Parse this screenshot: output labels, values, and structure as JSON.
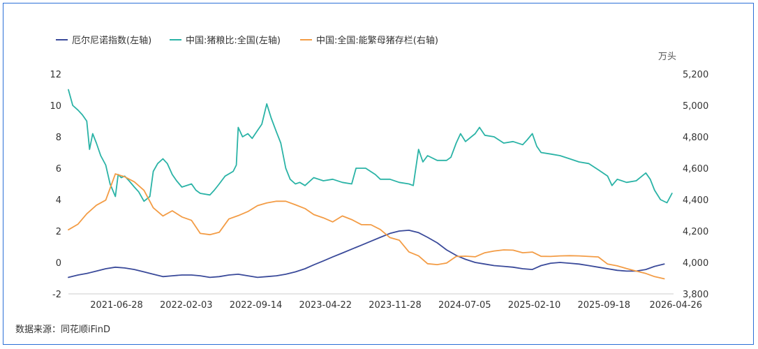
{
  "chart_data": {
    "type": "line",
    "right_axis_unit": "万头",
    "source": "数据来源：同花顺iFinD",
    "x_ticks": [
      "2021-06-28",
      "2022-02-03",
      "2022-09-14",
      "2023-04-22",
      "2023-11-28",
      "2024-07-05",
      "2025-02-10",
      "2025-09-18",
      "2026-04-26"
    ],
    "left_axis": {
      "ticks": [
        "12",
        "10",
        "8",
        "6",
        "4",
        "2",
        "0",
        "-2"
      ],
      "range": [
        -2,
        12
      ],
      "side": "left"
    },
    "right_axis": {
      "ticks": [
        "5,200",
        "5,000",
        "4,800",
        "4,600",
        "4,400",
        "4,200",
        "4,000",
        "3,800"
      ],
      "range": [
        3800,
        5200
      ],
      "side": "right"
    },
    "grid": false,
    "legend_position": "top-left",
    "series": [
      {
        "name": "厄尔尼诺指数(左轴)",
        "axis": "left",
        "color": "#3a4a9a",
        "points": [
          [
            "2021-01-01",
            -0.95
          ],
          [
            "2021-02-01",
            -0.8
          ],
          [
            "2021-03-01",
            -0.7
          ],
          [
            "2021-04-01",
            -0.55
          ],
          [
            "2021-05-01",
            -0.4
          ],
          [
            "2021-06-01",
            -0.3
          ],
          [
            "2021-07-01",
            -0.35
          ],
          [
            "2021-08-01",
            -0.45
          ],
          [
            "2021-09-01",
            -0.6
          ],
          [
            "2021-10-01",
            -0.75
          ],
          [
            "2021-11-01",
            -0.9
          ],
          [
            "2021-12-01",
            -0.85
          ],
          [
            "2022-01-01",
            -0.8
          ],
          [
            "2022-02-01",
            -0.8
          ],
          [
            "2022-03-01",
            -0.85
          ],
          [
            "2022-04-01",
            -0.95
          ],
          [
            "2022-05-01",
            -0.9
          ],
          [
            "2022-06-01",
            -0.8
          ],
          [
            "2022-07-01",
            -0.75
          ],
          [
            "2022-08-01",
            -0.85
          ],
          [
            "2022-09-01",
            -0.95
          ],
          [
            "2022-10-01",
            -0.9
          ],
          [
            "2022-11-01",
            -0.85
          ],
          [
            "2022-12-01",
            -0.75
          ],
          [
            "2023-01-01",
            -0.6
          ],
          [
            "2023-02-01",
            -0.4
          ],
          [
            "2023-03-01",
            -0.15
          ],
          [
            "2023-04-01",
            0.1
          ],
          [
            "2023-05-01",
            0.35
          ],
          [
            "2023-06-01",
            0.6
          ],
          [
            "2023-07-01",
            0.85
          ],
          [
            "2023-08-01",
            1.1
          ],
          [
            "2023-09-01",
            1.35
          ],
          [
            "2023-10-01",
            1.6
          ],
          [
            "2023-11-01",
            1.85
          ],
          [
            "2023-12-01",
            2.0
          ],
          [
            "2024-01-01",
            2.05
          ],
          [
            "2024-02-01",
            1.9
          ],
          [
            "2024-03-01",
            1.6
          ],
          [
            "2024-04-01",
            1.25
          ],
          [
            "2024-05-01",
            0.8
          ],
          [
            "2024-06-01",
            0.45
          ],
          [
            "2024-07-01",
            0.2
          ],
          [
            "2024-08-01",
            0.0
          ],
          [
            "2024-09-01",
            -0.1
          ],
          [
            "2024-10-01",
            -0.2
          ],
          [
            "2024-11-01",
            -0.25
          ],
          [
            "2024-12-01",
            -0.3
          ],
          [
            "2025-01-01",
            -0.4
          ],
          [
            "2025-02-01",
            -0.45
          ],
          [
            "2025-03-01",
            -0.2
          ],
          [
            "2025-04-01",
            -0.05
          ],
          [
            "2025-05-01",
            0.0
          ],
          [
            "2025-06-01",
            -0.05
          ],
          [
            "2025-07-01",
            -0.1
          ],
          [
            "2025-08-01",
            -0.2
          ],
          [
            "2025-09-01",
            -0.3
          ],
          [
            "2025-10-01",
            -0.4
          ],
          [
            "2025-11-01",
            -0.5
          ],
          [
            "2025-12-01",
            -0.55
          ],
          [
            "2026-01-01",
            -0.55
          ],
          [
            "2026-02-01",
            -0.45
          ],
          [
            "2026-03-01",
            -0.25
          ],
          [
            "2026-04-01",
            -0.1
          ]
        ]
      },
      {
        "name": "中国:猪粮比:全国(左轴)",
        "axis": "left",
        "color": "#2ab3a6",
        "points": [
          [
            "2021-01-01",
            11.0
          ],
          [
            "2021-01-15",
            10.0
          ],
          [
            "2021-02-01",
            9.7
          ],
          [
            "2021-02-15",
            9.4
          ],
          [
            "2021-03-01",
            9.0
          ],
          [
            "2021-03-10",
            7.2
          ],
          [
            "2021-03-20",
            8.2
          ],
          [
            "2021-04-01",
            7.6
          ],
          [
            "2021-04-15",
            6.8
          ],
          [
            "2021-05-01",
            6.2
          ],
          [
            "2021-05-15",
            5.0
          ],
          [
            "2021-06-01",
            4.2
          ],
          [
            "2021-06-10",
            5.6
          ],
          [
            "2021-06-20",
            5.4
          ],
          [
            "2021-07-01",
            5.5
          ],
          [
            "2021-07-15",
            5.2
          ],
          [
            "2021-08-01",
            4.8
          ],
          [
            "2021-08-15",
            4.5
          ],
          [
            "2021-09-01",
            3.9
          ],
          [
            "2021-09-20",
            4.2
          ],
          [
            "2021-10-01",
            5.8
          ],
          [
            "2021-10-15",
            6.3
          ],
          [
            "2021-11-01",
            6.6
          ],
          [
            "2021-11-15",
            6.3
          ],
          [
            "2021-12-01",
            5.6
          ],
          [
            "2021-12-15",
            5.2
          ],
          [
            "2022-01-01",
            4.8
          ],
          [
            "2022-02-01",
            5.0
          ],
          [
            "2022-02-15",
            4.6
          ],
          [
            "2022-03-01",
            4.4
          ],
          [
            "2022-04-01",
            4.3
          ],
          [
            "2022-04-15",
            4.6
          ],
          [
            "2022-05-01",
            5.0
          ],
          [
            "2022-05-20",
            5.5
          ],
          [
            "2022-06-15",
            5.8
          ],
          [
            "2022-06-25",
            6.2
          ],
          [
            "2022-07-01",
            8.6
          ],
          [
            "2022-07-15",
            8.0
          ],
          [
            "2022-08-01",
            8.2
          ],
          [
            "2022-08-15",
            7.9
          ],
          [
            "2022-09-01",
            8.4
          ],
          [
            "2022-09-15",
            8.8
          ],
          [
            "2022-10-01",
            10.1
          ],
          [
            "2022-10-15",
            9.2
          ],
          [
            "2022-11-01",
            8.3
          ],
          [
            "2022-11-15",
            7.6
          ],
          [
            "2022-12-01",
            6.0
          ],
          [
            "2022-12-15",
            5.3
          ],
          [
            "2023-01-01",
            5.0
          ],
          [
            "2023-01-15",
            5.1
          ],
          [
            "2023-02-01",
            4.9
          ],
          [
            "2023-03-01",
            5.4
          ],
          [
            "2023-04-01",
            5.2
          ],
          [
            "2023-05-01",
            5.3
          ],
          [
            "2023-06-01",
            5.1
          ],
          [
            "2023-07-01",
            5.0
          ],
          [
            "2023-07-15",
            6.0
          ],
          [
            "2023-08-15",
            6.0
          ],
          [
            "2023-09-15",
            5.6
          ],
          [
            "2023-10-01",
            5.3
          ],
          [
            "2023-11-01",
            5.3
          ],
          [
            "2023-12-01",
            5.1
          ],
          [
            "2024-01-01",
            5.0
          ],
          [
            "2024-01-15",
            4.9
          ],
          [
            "2024-02-01",
            7.2
          ],
          [
            "2024-02-15",
            6.4
          ],
          [
            "2024-03-01",
            6.8
          ],
          [
            "2024-04-01",
            6.5
          ],
          [
            "2024-05-01",
            6.5
          ],
          [
            "2024-05-15",
            6.7
          ],
          [
            "2024-06-01",
            7.6
          ],
          [
            "2024-06-15",
            8.2
          ],
          [
            "2024-07-01",
            7.7
          ],
          [
            "2024-08-01",
            8.2
          ],
          [
            "2024-08-15",
            8.6
          ],
          [
            "2024-09-01",
            8.1
          ],
          [
            "2024-10-01",
            8.0
          ],
          [
            "2024-11-01",
            7.6
          ],
          [
            "2024-12-01",
            7.7
          ],
          [
            "2025-01-01",
            7.5
          ],
          [
            "2025-01-15",
            7.8
          ],
          [
            "2025-02-01",
            8.2
          ],
          [
            "2025-02-15",
            7.4
          ],
          [
            "2025-03-01",
            7.0
          ],
          [
            "2025-04-01",
            6.9
          ],
          [
            "2025-05-01",
            6.8
          ],
          [
            "2025-06-01",
            6.6
          ],
          [
            "2025-07-01",
            6.4
          ],
          [
            "2025-08-01",
            6.3
          ],
          [
            "2025-09-01",
            5.9
          ],
          [
            "2025-10-01",
            5.5
          ],
          [
            "2025-10-15",
            4.9
          ],
          [
            "2025-11-01",
            5.3
          ],
          [
            "2025-12-01",
            5.1
          ],
          [
            "2026-01-01",
            5.2
          ],
          [
            "2026-02-01",
            5.7
          ],
          [
            "2026-02-15",
            5.3
          ],
          [
            "2026-03-01",
            4.6
          ],
          [
            "2026-03-20",
            4.0
          ],
          [
            "2026-04-10",
            3.8
          ],
          [
            "2026-04-26",
            4.4
          ]
        ]
      },
      {
        "name": "中国:全国:能繁母猪存栏(右轴)",
        "axis": "right",
        "color": "#f39c45",
        "points": [
          [
            "2021-01-01",
            4208
          ],
          [
            "2021-02-01",
            4244
          ],
          [
            "2021-03-01",
            4310
          ],
          [
            "2021-04-01",
            4364
          ],
          [
            "2021-05-01",
            4397
          ],
          [
            "2021-06-01",
            4564
          ],
          [
            "2021-07-01",
            4546
          ],
          [
            "2021-08-01",
            4513
          ],
          [
            "2021-09-01",
            4459
          ],
          [
            "2021-10-01",
            4348
          ],
          [
            "2021-11-01",
            4296
          ],
          [
            "2021-12-01",
            4329
          ],
          [
            "2022-01-01",
            4290
          ],
          [
            "2022-02-01",
            4268
          ],
          [
            "2022-03-01",
            4185
          ],
          [
            "2022-04-01",
            4177
          ],
          [
            "2022-05-01",
            4192
          ],
          [
            "2022-06-01",
            4277
          ],
          [
            "2022-07-01",
            4298
          ],
          [
            "2022-08-01",
            4324
          ],
          [
            "2022-09-01",
            4362
          ],
          [
            "2022-10-01",
            4379
          ],
          [
            "2022-11-01",
            4390
          ],
          [
            "2022-12-01",
            4390
          ],
          [
            "2023-01-01",
            4367
          ],
          [
            "2023-02-01",
            4343
          ],
          [
            "2023-03-01",
            4305
          ],
          [
            "2023-04-01",
            4284
          ],
          [
            "2023-05-01",
            4258
          ],
          [
            "2023-06-01",
            4296
          ],
          [
            "2023-07-01",
            4273
          ],
          [
            "2023-08-01",
            4241
          ],
          [
            "2023-09-01",
            4240
          ],
          [
            "2023-10-01",
            4210
          ],
          [
            "2023-11-01",
            4158
          ],
          [
            "2023-12-01",
            4142
          ],
          [
            "2024-01-01",
            4067
          ],
          [
            "2024-02-01",
            4042
          ],
          [
            "2024-03-01",
            3992
          ],
          [
            "2024-04-01",
            3986
          ],
          [
            "2024-05-01",
            3996
          ],
          [
            "2024-06-01",
            4038
          ],
          [
            "2024-07-01",
            4040
          ],
          [
            "2024-08-01",
            4036
          ],
          [
            "2024-09-01",
            4062
          ],
          [
            "2024-10-01",
            4073
          ],
          [
            "2024-11-01",
            4080
          ],
          [
            "2024-12-01",
            4078
          ],
          [
            "2025-01-01",
            4062
          ],
          [
            "2025-02-01",
            4066
          ],
          [
            "2025-03-01",
            4039
          ],
          [
            "2025-04-01",
            4038
          ],
          [
            "2025-05-01",
            4042
          ],
          [
            "2025-06-01",
            4043
          ],
          [
            "2025-07-01",
            4042
          ],
          [
            "2025-08-01",
            4038
          ],
          [
            "2025-09-01",
            4035
          ],
          [
            "2025-10-01",
            3990
          ],
          [
            "2025-11-01",
            3978
          ],
          [
            "2025-12-01",
            3961
          ],
          [
            "2026-01-01",
            3945
          ],
          [
            "2026-02-01",
            3930
          ],
          [
            "2026-03-01",
            3910
          ],
          [
            "2026-04-01",
            3896
          ]
        ]
      }
    ]
  }
}
